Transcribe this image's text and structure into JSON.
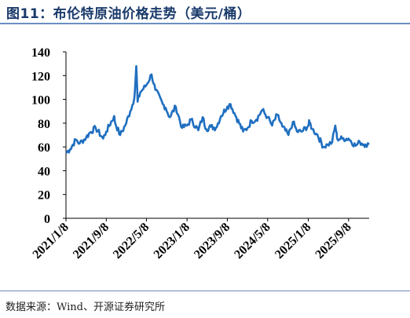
{
  "figure": {
    "title": "图11：布伦特原油价格走势（美元/桶）",
    "source": "数据来源：Wind、开源证券研究所"
  },
  "colors": {
    "line": "#1f6fc0",
    "title": "#1a3a6b",
    "rule": "#6b8fc2",
    "axis": "#000000"
  },
  "chart_data": {
    "type": "line",
    "title": "",
    "xlabel": "",
    "ylabel": "",
    "ylim": [
      0,
      140
    ],
    "yticks": [
      "0",
      "20",
      "40",
      "60",
      "80",
      "100",
      "120",
      "140"
    ],
    "xticks": [
      "2021/1/8",
      "2021/9/8",
      "2022/5/8",
      "2023/1/8",
      "2023/9/8",
      "2024/5/8",
      "2025/1/8",
      "2025/9/8"
    ],
    "xlim": [
      "2021/1/8",
      "2026/1/10"
    ],
    "grid": false,
    "series": [
      {
        "x": [
          "2021/1/8",
          "2021/2/1",
          "2021/3/8",
          "2021/4/1",
          "2021/5/10",
          "2021/6/1",
          "2021/7/6",
          "2021/8/20",
          "2021/9/8",
          "2021/10/25",
          "2021/11/1",
          "2021/12/1",
          "2021/12/31",
          "2022/1/31",
          "2022/2/24",
          "2022/3/8",
          "2022/3/16",
          "2022/4/1",
          "2022/5/8",
          "2022/6/8",
          "2022/7/1",
          "2022/8/15",
          "2022/9/1",
          "2022/9/26",
          "2022/11/1",
          "2022/12/9",
          "2023/1/8",
          "2023/2/1",
          "2023/3/17",
          "2023/4/12",
          "2023/5/4",
          "2023/6/1",
          "2023/7/1",
          "2023/8/1",
          "2023/9/8",
          "2023/9/27",
          "2023/11/1",
          "2023/12/12",
          "2024/1/8",
          "2024/2/1",
          "2024/3/1",
          "2024/4/5",
          "2024/5/8",
          "2024/6/4",
          "2024/7/5",
          "2024/8/5",
          "2024/9/10",
          "2024/10/7",
          "2024/11/1",
          "2024/12/1",
          "2025/1/8",
          "2025/1/15",
          "2025/2/1",
          "2025/3/5",
          "2025/4/9",
          "2025/5/5",
          "2025/6/1",
          "2025/6/20",
          "2025/7/1",
          "2025/8/1",
          "2025/9/8",
          "2025/10/20",
          "2025/11/15",
          "2025/12/20",
          "2026/1/9"
        ],
        "values": [
          55,
          58,
          66,
          63,
          68,
          72,
          76,
          67,
          73,
          86,
          80,
          70,
          78,
          90,
          101,
          128,
          98,
          106,
          112,
          121,
          108,
          96,
          93,
          85,
          94,
          76,
          78,
          83,
          74,
          85,
          75,
          77,
          76,
          86,
          94,
          96,
          85,
          73,
          76,
          82,
          83,
          91,
          85,
          78,
          87,
          77,
          70,
          81,
          73,
          73,
          78,
          81,
          75,
          70,
          60,
          62,
          64,
          78,
          67,
          67,
          67,
          61,
          64,
          62,
          62
        ]
      }
    ]
  }
}
